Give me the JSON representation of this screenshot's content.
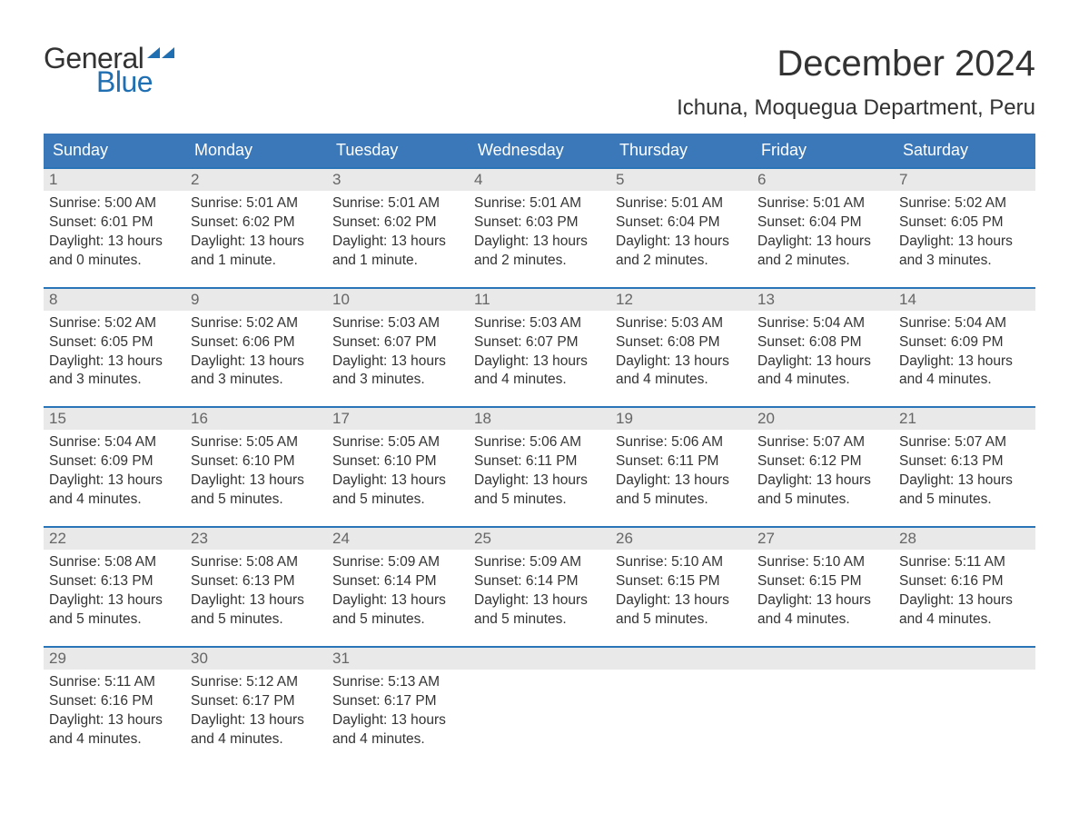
{
  "logo": {
    "line1": "General",
    "line2": "Blue",
    "accent_color": "#1f6fb2"
  },
  "title": "December 2024",
  "location": "Ichuna, Moquegua Department, Peru",
  "colors": {
    "header_bg": "#3a78b9",
    "row_border": "#2a74b8",
    "date_bg": "#e9e9e9",
    "text": "#333333"
  },
  "days_of_week": [
    "Sunday",
    "Monday",
    "Tuesday",
    "Wednesday",
    "Thursday",
    "Friday",
    "Saturday"
  ],
  "calendar": {
    "type": "calendar-grid",
    "weeks": [
      [
        {
          "n": 1,
          "sunrise": "5:00 AM",
          "sunset": "6:01 PM",
          "daylight": "13 hours and 0 minutes."
        },
        {
          "n": 2,
          "sunrise": "5:01 AM",
          "sunset": "6:02 PM",
          "daylight": "13 hours and 1 minute."
        },
        {
          "n": 3,
          "sunrise": "5:01 AM",
          "sunset": "6:02 PM",
          "daylight": "13 hours and 1 minute."
        },
        {
          "n": 4,
          "sunrise": "5:01 AM",
          "sunset": "6:03 PM",
          "daylight": "13 hours and 2 minutes."
        },
        {
          "n": 5,
          "sunrise": "5:01 AM",
          "sunset": "6:04 PM",
          "daylight": "13 hours and 2 minutes."
        },
        {
          "n": 6,
          "sunrise": "5:01 AM",
          "sunset": "6:04 PM",
          "daylight": "13 hours and 2 minutes."
        },
        {
          "n": 7,
          "sunrise": "5:02 AM",
          "sunset": "6:05 PM",
          "daylight": "13 hours and 3 minutes."
        }
      ],
      [
        {
          "n": 8,
          "sunrise": "5:02 AM",
          "sunset": "6:05 PM",
          "daylight": "13 hours and 3 minutes."
        },
        {
          "n": 9,
          "sunrise": "5:02 AM",
          "sunset": "6:06 PM",
          "daylight": "13 hours and 3 minutes."
        },
        {
          "n": 10,
          "sunrise": "5:03 AM",
          "sunset": "6:07 PM",
          "daylight": "13 hours and 3 minutes."
        },
        {
          "n": 11,
          "sunrise": "5:03 AM",
          "sunset": "6:07 PM",
          "daylight": "13 hours and 4 minutes."
        },
        {
          "n": 12,
          "sunrise": "5:03 AM",
          "sunset": "6:08 PM",
          "daylight": "13 hours and 4 minutes."
        },
        {
          "n": 13,
          "sunrise": "5:04 AM",
          "sunset": "6:08 PM",
          "daylight": "13 hours and 4 minutes."
        },
        {
          "n": 14,
          "sunrise": "5:04 AM",
          "sunset": "6:09 PM",
          "daylight": "13 hours and 4 minutes."
        }
      ],
      [
        {
          "n": 15,
          "sunrise": "5:04 AM",
          "sunset": "6:09 PM",
          "daylight": "13 hours and 4 minutes."
        },
        {
          "n": 16,
          "sunrise": "5:05 AM",
          "sunset": "6:10 PM",
          "daylight": "13 hours and 5 minutes."
        },
        {
          "n": 17,
          "sunrise": "5:05 AM",
          "sunset": "6:10 PM",
          "daylight": "13 hours and 5 minutes."
        },
        {
          "n": 18,
          "sunrise": "5:06 AM",
          "sunset": "6:11 PM",
          "daylight": "13 hours and 5 minutes."
        },
        {
          "n": 19,
          "sunrise": "5:06 AM",
          "sunset": "6:11 PM",
          "daylight": "13 hours and 5 minutes."
        },
        {
          "n": 20,
          "sunrise": "5:07 AM",
          "sunset": "6:12 PM",
          "daylight": "13 hours and 5 minutes."
        },
        {
          "n": 21,
          "sunrise": "5:07 AM",
          "sunset": "6:13 PM",
          "daylight": "13 hours and 5 minutes."
        }
      ],
      [
        {
          "n": 22,
          "sunrise": "5:08 AM",
          "sunset": "6:13 PM",
          "daylight": "13 hours and 5 minutes."
        },
        {
          "n": 23,
          "sunrise": "5:08 AM",
          "sunset": "6:13 PM",
          "daylight": "13 hours and 5 minutes."
        },
        {
          "n": 24,
          "sunrise": "5:09 AM",
          "sunset": "6:14 PM",
          "daylight": "13 hours and 5 minutes."
        },
        {
          "n": 25,
          "sunrise": "5:09 AM",
          "sunset": "6:14 PM",
          "daylight": "13 hours and 5 minutes."
        },
        {
          "n": 26,
          "sunrise": "5:10 AM",
          "sunset": "6:15 PM",
          "daylight": "13 hours and 5 minutes."
        },
        {
          "n": 27,
          "sunrise": "5:10 AM",
          "sunset": "6:15 PM",
          "daylight": "13 hours and 4 minutes."
        },
        {
          "n": 28,
          "sunrise": "5:11 AM",
          "sunset": "6:16 PM",
          "daylight": "13 hours and 4 minutes."
        }
      ],
      [
        {
          "n": 29,
          "sunrise": "5:11 AM",
          "sunset": "6:16 PM",
          "daylight": "13 hours and 4 minutes."
        },
        {
          "n": 30,
          "sunrise": "5:12 AM",
          "sunset": "6:17 PM",
          "daylight": "13 hours and 4 minutes."
        },
        {
          "n": 31,
          "sunrise": "5:13 AM",
          "sunset": "6:17 PM",
          "daylight": "13 hours and 4 minutes."
        },
        null,
        null,
        null,
        null
      ]
    ]
  },
  "labels": {
    "sunrise": "Sunrise: ",
    "sunset": "Sunset: ",
    "daylight": "Daylight: "
  }
}
